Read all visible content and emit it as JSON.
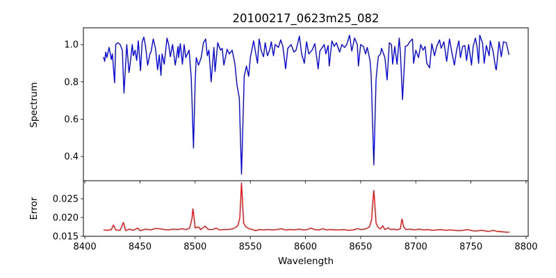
{
  "chart_data": [
    {
      "type": "line",
      "title": "20100217_0623m25_082",
      "xlabel": "",
      "ylabel": "Spectrum",
      "xlim": [
        8398.7,
        8801.9
      ],
      "ylim": [
        0.27,
        1.09
      ],
      "xticks": [
        8400,
        8450,
        8500,
        8550,
        8600,
        8650,
        8700,
        8750,
        8800
      ],
      "yticks": [
        0.4,
        0.6,
        0.8,
        1.0
      ],
      "ytick_labels": [
        "0.4",
        "0.6",
        "0.8",
        "1.0"
      ],
      "grid": false,
      "color": "#0000ff",
      "series": [
        {
          "name": "Spectrum",
          "x": [
            8417,
            8418,
            8419,
            8420,
            8422,
            8424,
            8425,
            8427,
            8428,
            8430,
            8432,
            8434,
            8435.5,
            8438,
            8440,
            8441,
            8443,
            8444,
            8445.5,
            8447,
            8448.5,
            8450.5,
            8452,
            8453.5,
            8455,
            8457,
            8459,
            8460,
            8462,
            8464,
            8466,
            8467.5,
            8469,
            8470,
            8472,
            8474.5,
            8476,
            8477.5,
            8479.5,
            8482,
            8484.5,
            8485,
            8486.5,
            8488.5,
            8490,
            8491.5,
            8494.5,
            8496.5,
            8498.5,
            8500,
            8501,
            8503,
            8505.5,
            8507.5,
            8509.5,
            8511,
            8512.5,
            8514.5,
            8517,
            8518,
            8520.5,
            8523,
            8524.5,
            8526,
            8529,
            8531,
            8533.5,
            8536,
            8538,
            8540,
            8542,
            8544.5,
            8546.5,
            8548.5,
            8550,
            8553,
            8555,
            8556.5,
            8558,
            8560,
            8562,
            8563.5,
            8565.5,
            8567.5,
            8569,
            8571,
            8572.5,
            8575.5,
            8577.5,
            8579.5,
            8582,
            8584,
            8587,
            8589.5,
            8591.5,
            8594.5,
            8596.5,
            8599,
            8601,
            8603,
            8606,
            8608.5,
            8611.5,
            8613,
            8617,
            8618.5,
            8620.5,
            8621.5,
            8624,
            8626,
            8628,
            8631,
            8633,
            8635.5,
            8637.5,
            8640,
            8642,
            8644.5,
            8647,
            8648,
            8650,
            8652.5,
            8654.5,
            8656,
            8658.5,
            8659.5,
            8662,
            8664,
            8666,
            8668,
            8669,
            8672,
            8674,
            8676,
            8678,
            8679,
            8681,
            8683,
            8685,
            8686,
            8688,
            8690.5,
            8692.5,
            8694.5,
            8697,
            8698,
            8700,
            8702.5,
            8704.5,
            8706.5,
            8708.5,
            8710,
            8712.5,
            8714.5,
            8717,
            8719,
            8721.5,
            8723,
            8725.5,
            8728,
            8730.5,
            8732.5,
            8735,
            8737,
            8739,
            8740.5,
            8742.5,
            8744.5,
            8746,
            8748,
            8750.5,
            8752,
            8754,
            8755.5,
            8757,
            8758,
            8760.5,
            8762,
            8764,
            8766.5,
            8767.5,
            8770,
            8772.5,
            8773,
            8775.5,
            8777.5,
            8779.5,
            8782,
            8784.5
          ],
          "y": [
            0.934,
            0.91,
            0.96,
            0.93,
            0.985,
            0.92,
            0.95,
            0.795,
            1.0,
            1.01,
            1.0,
            0.97,
            0.74,
            1.0,
            0.85,
            0.89,
            1.0,
            0.94,
            0.97,
            0.915,
            1.02,
            0.86,
            1.015,
            1.04,
            0.99,
            0.89,
            0.95,
            0.96,
            1.03,
            0.98,
            0.865,
            0.945,
            0.835,
            0.95,
            0.895,
            1.035,
            1.0,
            0.935,
            1.0,
            0.89,
            0.99,
            0.93,
            1.005,
            0.895,
            1.0,
            0.93,
            0.97,
            0.82,
            0.445,
            0.8,
            0.93,
            0.89,
            0.93,
            1.01,
            1.03,
            0.94,
            0.97,
            0.8,
            0.985,
            0.855,
            1.01,
            0.97,
            0.98,
            0.89,
            0.975,
            0.95,
            0.97,
            0.9,
            0.78,
            0.715,
            0.305,
            0.83,
            0.885,
            0.83,
            0.93,
            1.02,
            0.95,
            0.9,
            1.03,
            0.965,
            0.935,
            1.01,
            0.94,
            0.97,
            1.015,
            0.94,
            1.0,
            0.985,
            1.025,
            0.99,
            0.87,
            0.98,
            1.0,
            0.96,
            0.97,
            1.045,
            0.95,
            0.9,
            1.015,
            0.95,
            0.97,
            1.005,
            0.87,
            0.965,
            1.0,
            0.95,
            0.995,
            0.885,
            1.02,
            0.99,
            1.01,
            0.96,
            1.0,
            0.985,
            1.0,
            1.05,
            0.965,
            1.035,
            1.0,
            0.885,
            1.0,
            0.99,
            0.95,
            0.985,
            0.915,
            0.84,
            0.355,
            0.815,
            0.935,
            0.95,
            0.98,
            0.93,
            0.81,
            1.01,
            1.0,
            0.895,
            0.99,
            0.895,
            1.035,
            0.965,
            0.705,
            0.99,
            0.995,
            1.015,
            1.03,
            0.9,
            0.97,
            0.93,
            1.0,
            0.97,
            0.99,
            0.9,
            0.875,
            1.005,
            0.94,
            0.99,
            1.025,
            0.98,
            1.015,
            0.91,
            1.03,
            0.965,
            0.89,
            0.97,
            1.02,
            0.93,
            0.99,
            0.995,
            0.915,
            1.0,
            0.89,
            0.99,
            1.035,
            0.99,
            0.9,
            1.05,
            1.01,
            0.9,
            0.995,
            0.94,
            1.02,
            0.965,
            0.87,
            0.865,
            1.015,
            0.935,
            1.015,
            1.01,
            0.945
          ]
        }
      ]
    },
    {
      "type": "line",
      "title": "",
      "xlabel": "Wavelength",
      "ylabel": "Error",
      "xlim": [
        8398.7,
        8801.9
      ],
      "ylim": [
        0.015,
        0.0298
      ],
      "xticks": [
        8400,
        8450,
        8500,
        8550,
        8600,
        8650,
        8700,
        8750,
        8800
      ],
      "xtick_labels": [
        "8400",
        "8450",
        "8500",
        "8550",
        "8600",
        "8650",
        "8700",
        "8750",
        "8800"
      ],
      "yticks": [
        0.015,
        0.02,
        0.025
      ],
      "ytick_labels": [
        "0.015",
        "0.020",
        "0.025"
      ],
      "grid": false,
      "color": "#ff0000",
      "series": [
        {
          "name": "Error",
          "x": [
            8417,
            8420,
            8424,
            8426,
            8428,
            8432,
            8435,
            8437,
            8440,
            8444,
            8448,
            8450,
            8455,
            8460,
            8464,
            8468,
            8472,
            8476,
            8480,
            8484,
            8488,
            8492,
            8495,
            8497,
            8498,
            8499,
            8500,
            8503,
            8505,
            8509,
            8512,
            8516,
            8519,
            8522,
            8526,
            8530,
            8534,
            8537,
            8539,
            8540.5,
            8541.5,
            8542,
            8543,
            8544,
            8546,
            8549,
            8552,
            8555,
            8558,
            8562,
            8566,
            8570,
            8574,
            8578,
            8582,
            8586,
            8590,
            8594,
            8598,
            8602,
            8605,
            8608,
            8612,
            8616,
            8619,
            8623,
            8627,
            8631,
            8635,
            8639,
            8643,
            8647,
            8651,
            8655,
            8658,
            8660,
            8661,
            8662,
            8663,
            8664,
            8666,
            8668,
            8670,
            8672,
            8675,
            8677,
            8680,
            8683,
            8686,
            8687.5,
            8689,
            8691,
            8695,
            8699,
            8703,
            8707,
            8711,
            8715,
            8719,
            8723,
            8727,
            8731,
            8735,
            8739,
            8743,
            8747,
            8751,
            8755,
            8759,
            8762,
            8766,
            8770,
            8774,
            8778,
            8782,
            8785
          ],
          "y": [
            0.0167,
            0.0166,
            0.0168,
            0.018,
            0.0167,
            0.0166,
            0.0187,
            0.0165,
            0.0169,
            0.0166,
            0.0172,
            0.0165,
            0.0169,
            0.0167,
            0.0171,
            0.017,
            0.0168,
            0.0167,
            0.0169,
            0.0168,
            0.017,
            0.0168,
            0.0172,
            0.0195,
            0.0223,
            0.02,
            0.0172,
            0.0175,
            0.0168,
            0.0177,
            0.0168,
            0.0168,
            0.0172,
            0.0167,
            0.0168,
            0.0168,
            0.017,
            0.0174,
            0.018,
            0.02,
            0.026,
            0.0292,
            0.024,
            0.0185,
            0.0175,
            0.017,
            0.0168,
            0.0165,
            0.0168,
            0.0167,
            0.0168,
            0.0167,
            0.0168,
            0.017,
            0.0167,
            0.0168,
            0.0167,
            0.0169,
            0.0167,
            0.0168,
            0.0172,
            0.0168,
            0.0167,
            0.017,
            0.0167,
            0.0168,
            0.0167,
            0.0167,
            0.0168,
            0.0166,
            0.0167,
            0.017,
            0.0168,
            0.017,
            0.0175,
            0.0195,
            0.024,
            0.0272,
            0.023,
            0.0185,
            0.0173,
            0.017,
            0.0178,
            0.0168,
            0.0173,
            0.0168,
            0.0169,
            0.0167,
            0.017,
            0.0196,
            0.0175,
            0.0168,
            0.0169,
            0.0167,
            0.0169,
            0.0167,
            0.0168,
            0.0166,
            0.0167,
            0.0168,
            0.0166,
            0.0167,
            0.0166,
            0.0165,
            0.0166,
            0.0168,
            0.0165,
            0.0164,
            0.0166,
            0.0165,
            0.0163,
            0.0166,
            0.0163,
            0.0162,
            0.0161,
            0.0161
          ]
        }
      ]
    }
  ]
}
